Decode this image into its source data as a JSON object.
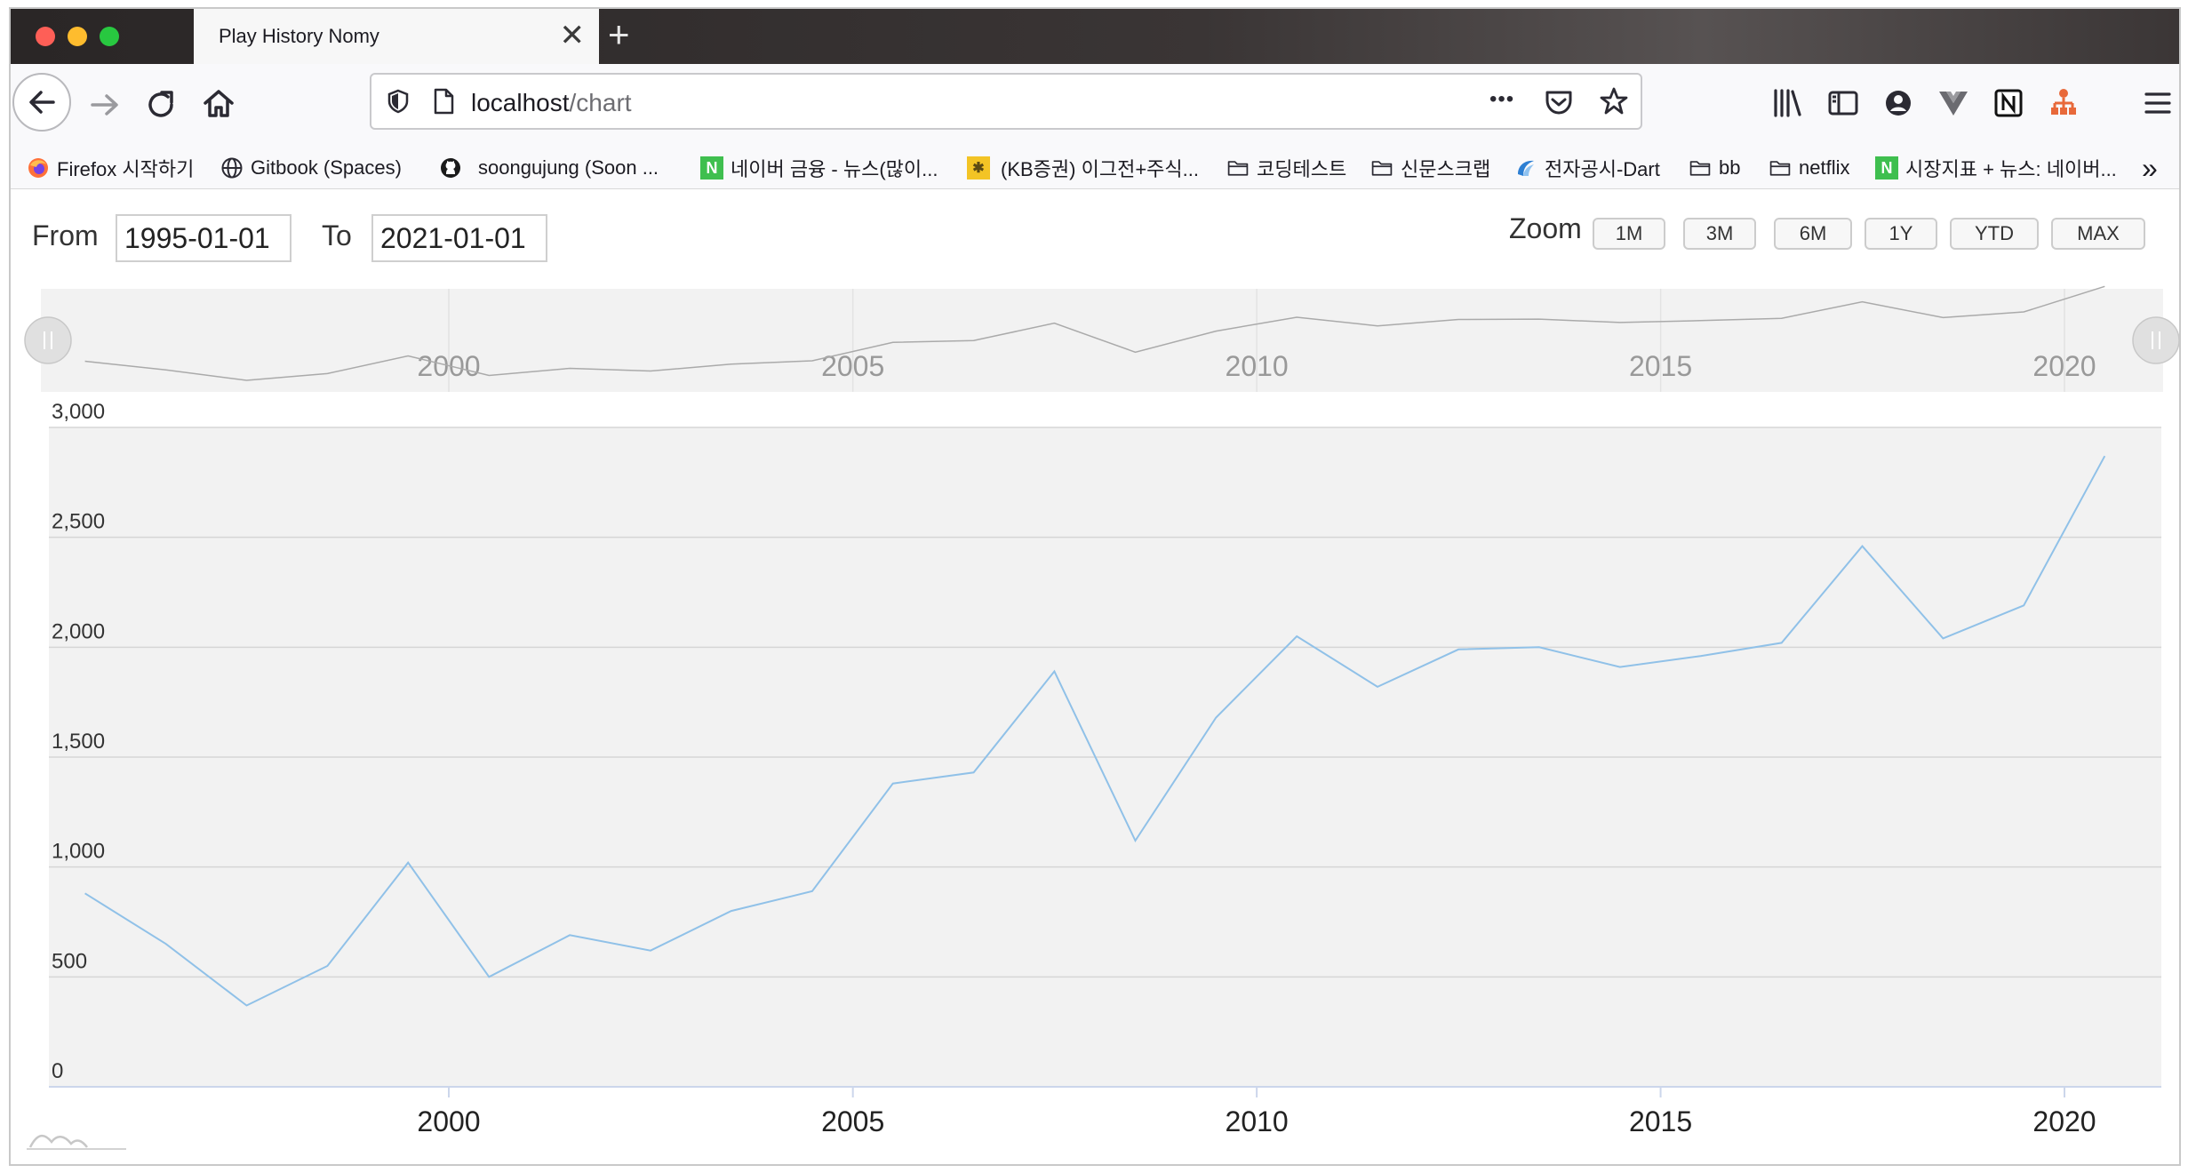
{
  "browser": {
    "tab_title": "Play History Nomy",
    "tab_close": "✕",
    "new_tab": "+",
    "url_host": "localhost",
    "url_path": "/chart",
    "more_label": "•••"
  },
  "bookmarks": [
    {
      "label": "Firefox 시작하기",
      "icon": "firefox-icon"
    },
    {
      "label": "Gitbook (Spaces)",
      "icon": "globe-icon"
    },
    {
      "label": "soongujung (Soon ...",
      "icon": "github-icon"
    },
    {
      "label": "네이버 금융 - 뉴스(많이...",
      "icon": "naver-icon"
    },
    {
      "label": "(KB증권) 이그전+주식...",
      "icon": "kb-icon"
    },
    {
      "label": "코딩테스트",
      "icon": "folder-icon"
    },
    {
      "label": "신문스크랩",
      "icon": "folder-icon"
    },
    {
      "label": "전자공시-Dart",
      "icon": "dart-icon"
    },
    {
      "label": "bb",
      "icon": "folder-icon"
    },
    {
      "label": "netflix",
      "icon": "folder-icon"
    },
    {
      "label": "시장지표 + 뉴스: 네이버...",
      "icon": "naver-icon"
    }
  ],
  "bookmarks_overflow": "»",
  "range": {
    "from_label": "From",
    "from_value": "1995-01-01",
    "to_label": "To",
    "to_value": "2021-01-01"
  },
  "zoom": {
    "label": "Zoom",
    "buttons": [
      "1M",
      "3M",
      "6M",
      "1Y",
      "YTD",
      "MAX"
    ]
  },
  "colors": {
    "series": "#90c1e8",
    "plot_bg": "#f2f2f2",
    "navigator_line": "#aaaaaa"
  },
  "chart_data": {
    "type": "line",
    "title": "",
    "xlabel": "",
    "ylabel": "",
    "x_type": "datetime",
    "xlim": [
      "1995-01-01",
      "2021-01-01"
    ],
    "ylim": [
      0,
      3000
    ],
    "y_ticks": [
      0,
      500,
      1000,
      1500,
      2000,
      2500,
      3000
    ],
    "y_tick_labels": [
      "0",
      "500",
      "1,000",
      "1,500",
      "2,000",
      "2,500",
      "3,000"
    ],
    "x_ticks": [
      "2000-01-01",
      "2005-01-01",
      "2010-01-01",
      "2015-01-01",
      "2020-01-01"
    ],
    "x_tick_labels": [
      "2000",
      "2005",
      "2010",
      "2015",
      "2020"
    ],
    "grid": true,
    "legend": "none",
    "navigator": true,
    "series": [
      {
        "x": [
          "1995-07-01",
          "1996-07-01",
          "1997-07-01",
          "1998-07-01",
          "1999-07-01",
          "2000-07-01",
          "2001-07-01",
          "2002-07-01",
          "2003-07-01",
          "2004-07-01",
          "2005-07-01",
          "2006-07-01",
          "2007-07-01",
          "2008-07-01",
          "2009-07-01",
          "2010-07-01",
          "2011-07-01",
          "2012-07-01",
          "2013-07-01",
          "2014-07-01",
          "2015-07-01",
          "2016-07-01",
          "2017-07-01",
          "2018-07-01",
          "2019-07-01",
          "2020-07-01"
        ],
        "values": [
          880,
          650,
          370,
          550,
          1020,
          500,
          690,
          620,
          800,
          890,
          1380,
          1430,
          1890,
          1120,
          1680,
          2050,
          1820,
          1990,
          2000,
          1910,
          1960,
          2020,
          2460,
          2040,
          2190,
          2870
        ]
      }
    ]
  }
}
